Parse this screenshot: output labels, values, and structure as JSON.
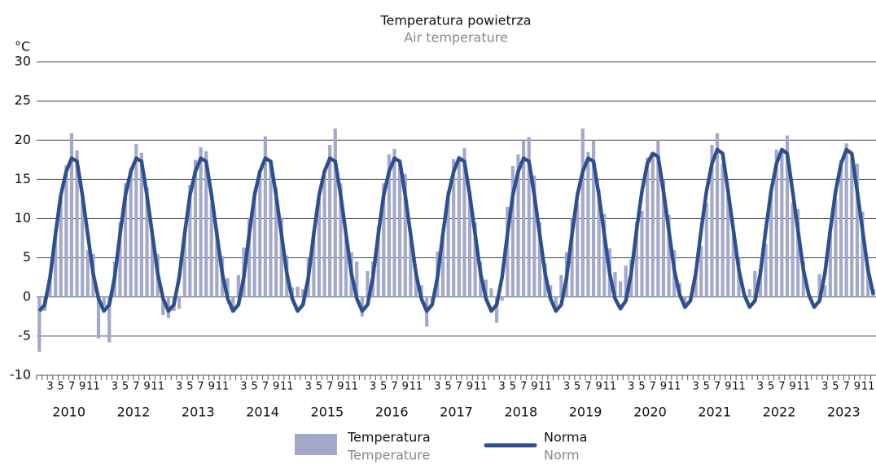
{
  "chart_data": {
    "type": "bar_line",
    "title": "Temperatura powietrza",
    "subtitle": "Air temperature",
    "y_label": "°C",
    "years": [
      "2010",
      "2012",
      "2013",
      "2014",
      "2015",
      "2016",
      "2017",
      "2018",
      "2019",
      "2020",
      "2021",
      "2022",
      "2023"
    ],
    "month_labels": [
      null,
      null,
      3,
      null,
      5,
      null,
      7,
      null,
      9,
      null,
      11,
      null
    ],
    "ylim": [
      -10,
      30
    ],
    "yticks": [
      -10,
      -5,
      0,
      5,
      10,
      15,
      20,
      25,
      30
    ],
    "grid": true,
    "series": [
      {
        "name": "Temperatura",
        "name_en": "Temperature",
        "kind": "bar",
        "color": "#a4a9cc",
        "values": [
          -7,
          -1.8,
          3,
          8,
          12.5,
          16.8,
          20.9,
          18.7,
          12.5,
          6,
          5.5,
          -5.3,
          -1.2,
          -5.8,
          4.5,
          9.5,
          14.5,
          16.5,
          19.5,
          18.4,
          14,
          8,
          5.5,
          -2.3,
          -2.7,
          -1.8,
          -1.5,
          8,
          14.3,
          17.5,
          19.1,
          18.6,
          12,
          8.5,
          5.2,
          2.4,
          -2,
          2.8,
          6.3,
          10,
          13.5,
          15.6,
          20.5,
          17.5,
          14,
          10,
          5.3,
          1.2,
          1.3,
          1,
          5,
          8.5,
          12.5,
          15.5,
          19.4,
          21.5,
          14.5,
          7.5,
          5.7,
          4.5,
          -2.5,
          3.3,
          4.5,
          9,
          14.5,
          18.2,
          18.9,
          17.5,
          15.7,
          7.5,
          3,
          1.5,
          -3.8,
          -0.5,
          5.8,
          7.5,
          13.5,
          17.6,
          18,
          19,
          13.5,
          9.5,
          4.5,
          2.2,
          1.1,
          -3.3,
          -0.5,
          11.5,
          16.7,
          18.2,
          20,
          20.4,
          15.5,
          9.5,
          4.3,
          1.5,
          -1.5,
          2.8,
          5.7,
          10,
          12,
          21.5,
          18.5,
          20,
          13.7,
          10.6,
          6.2,
          3.2,
          2,
          4,
          4.8,
          9.5,
          11,
          17.8,
          18,
          20,
          15,
          10.5,
          6,
          1.8,
          -1.5,
          -0.5,
          3.5,
          6.5,
          12,
          19.4,
          20.9,
          17,
          13,
          8,
          5,
          0,
          1,
          3.3,
          3.5,
          6.8,
          13,
          18.8,
          18.6,
          20.6,
          12,
          11.2,
          4.5,
          0.5,
          0,
          2.9,
          1.5,
          8,
          12.5,
          17.5,
          19.6,
          17.7,
          17,
          10.9,
          4,
          1
        ]
      },
      {
        "name": "Norma",
        "name_en": "Norm",
        "kind": "line",
        "color": "#2e4f8f",
        "values": [
          -1.8,
          -1,
          2.5,
          8,
          13,
          16,
          17.7,
          17.3,
          13,
          8,
          3,
          -0.2,
          -1.8,
          -1,
          2.5,
          8,
          13,
          16,
          17.7,
          17.3,
          13,
          8,
          3,
          -0.2,
          -1.8,
          -1,
          2.5,
          8,
          13,
          16,
          17.7,
          17.3,
          13,
          8,
          3,
          -0.2,
          -1.8,
          -1,
          2.5,
          8,
          13,
          16,
          17.7,
          17.3,
          13,
          8,
          3,
          -0.2,
          -1.8,
          -1,
          2.5,
          8,
          13,
          16,
          17.7,
          17.3,
          13,
          8,
          3,
          -0.2,
          -1.8,
          -1,
          2.5,
          8,
          13,
          16,
          17.7,
          17.3,
          13,
          8,
          3,
          -0.2,
          -1.8,
          -1,
          2.5,
          8,
          13,
          16,
          17.7,
          17.3,
          13,
          8,
          3,
          -0.2,
          -1.8,
          -1,
          2.5,
          8,
          13,
          16,
          17.7,
          17.3,
          13,
          8,
          3,
          -0.2,
          -1.8,
          -1,
          2.5,
          8,
          13,
          16,
          17.7,
          17.3,
          13,
          8,
          3,
          -0.2,
          -1.5,
          -0.5,
          3,
          8.5,
          13.5,
          17,
          18.3,
          17.9,
          13.5,
          8.5,
          3.5,
          0.3,
          -1.3,
          -0.5,
          3,
          8.5,
          13.5,
          17,
          18.8,
          18.3,
          13.5,
          8.5,
          3.5,
          0.3,
          -1.3,
          -0.5,
          3,
          8.5,
          13.5,
          17,
          18.8,
          18.3,
          13.5,
          8.5,
          3.5,
          0.3,
          -1.3,
          -0.5,
          3,
          8.5,
          13.5,
          17,
          18.8,
          18.3,
          13.5,
          8.5,
          3.5,
          0.3
        ]
      }
    ]
  }
}
